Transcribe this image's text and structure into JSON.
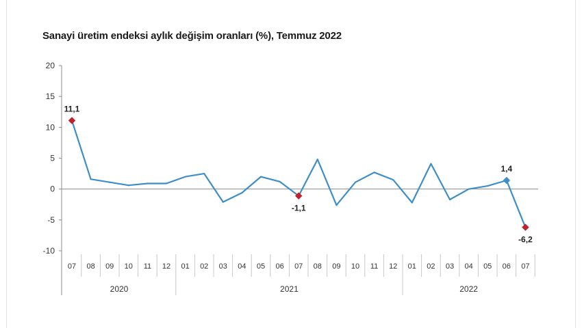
{
  "title": "Sanayi üretim endeksi aylık değişim oranları (%), Temmuz 2022",
  "colors": {
    "line": "#3d8ec9",
    "highlight": "#c0222b",
    "last_blue_marker": "#3d8ec9",
    "axis": "#8c8c8c"
  },
  "chart_data": {
    "type": "line",
    "y_ticks": [
      "20",
      "15",
      "10",
      "5",
      "0",
      "-5",
      "-10"
    ],
    "ylim": [
      -10,
      20
    ],
    "x_months": [
      "07",
      "08",
      "09",
      "10",
      "11",
      "12",
      "01",
      "02",
      "03",
      "04",
      "05",
      "06",
      "07",
      "08",
      "09",
      "10",
      "11",
      "12",
      "01",
      "02",
      "03",
      "04",
      "05",
      "06",
      "07"
    ],
    "years": [
      {
        "label": "2020",
        "start": 0,
        "end": 5
      },
      {
        "label": "2021",
        "start": 6,
        "end": 17
      },
      {
        "label": "2022",
        "start": 18,
        "end": 24
      }
    ],
    "series": [
      {
        "values": [
          11.1,
          1.6,
          1.1,
          0.6,
          0.9,
          0.9,
          2.0,
          2.5,
          -2.1,
          -0.6,
          2.0,
          1.2,
          -1.1,
          4.8,
          -2.6,
          1.1,
          2.7,
          1.5,
          -2.2,
          4.1,
          -1.7,
          0.0,
          0.5,
          1.4,
          -6.2
        ]
      }
    ],
    "highlights": [
      {
        "index": 0,
        "label": "11,1",
        "marker": "red-diamond"
      },
      {
        "index": 12,
        "label": "-1,1",
        "marker": "red-diamond"
      },
      {
        "index": 23,
        "label": "1,4",
        "marker": "blue-diamond"
      },
      {
        "index": 24,
        "label": "-6,2",
        "marker": "red-diamond"
      }
    ]
  }
}
